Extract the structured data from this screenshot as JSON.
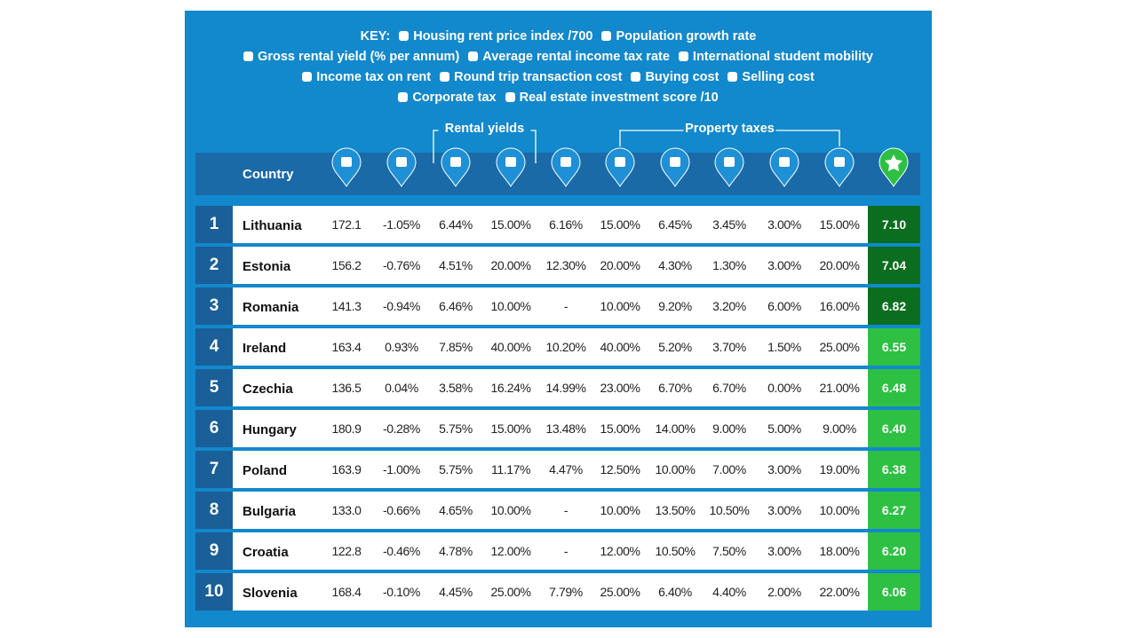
{
  "key": {
    "label": "KEY:",
    "lines": [
      [
        "Housing rent price index /700",
        "Population growth rate"
      ],
      [
        "Gross rental yield (% per annum)",
        "Average rental income tax rate",
        "International student mobility"
      ],
      [
        "Income tax on rent",
        "Round trip transaction cost",
        "Buying cost",
        "Selling cost"
      ],
      [
        "Corporate tax",
        "Real estate investment score /10"
      ]
    ]
  },
  "groups": [
    "Rental yields",
    "Property taxes"
  ],
  "table": {
    "country_header": "Country",
    "rows": [
      {
        "rank": "1",
        "country": "Lithuania",
        "values": [
          "172.1",
          "-1.05%",
          "6.44%",
          "15.00%",
          "6.16%",
          "15.00%",
          "6.45%",
          "3.45%",
          "3.00%",
          "15.00%"
        ],
        "score": "7.10"
      },
      {
        "rank": "2",
        "country": "Estonia",
        "values": [
          "156.2",
          "-0.76%",
          "4.51%",
          "20.00%",
          "12.30%",
          "20.00%",
          "4.30%",
          "1.30%",
          "3.00%",
          "20.00%"
        ],
        "score": "7.04"
      },
      {
        "rank": "3",
        "country": "Romania",
        "values": [
          "141.3",
          "-0.94%",
          "6.46%",
          "10.00%",
          "-",
          "10.00%",
          "9.20%",
          "3.20%",
          "6.00%",
          "16.00%"
        ],
        "score": "6.82"
      },
      {
        "rank": "4",
        "country": "Ireland",
        "values": [
          "163.4",
          "0.93%",
          "7.85%",
          "40.00%",
          "10.20%",
          "40.00%",
          "5.20%",
          "3.70%",
          "1.50%",
          "25.00%"
        ],
        "score": "6.55"
      },
      {
        "rank": "5",
        "country": "Czechia",
        "values": [
          "136.5",
          "0.04%",
          "3.58%",
          "16.24%",
          "14.99%",
          "23.00%",
          "6.70%",
          "6.70%",
          "0.00%",
          "21.00%"
        ],
        "score": "6.48"
      },
      {
        "rank": "6",
        "country": "Hungary",
        "values": [
          "180.9",
          "-0.28%",
          "5.75%",
          "15.00%",
          "13.48%",
          "15.00%",
          "14.00%",
          "9.00%",
          "5.00%",
          "9.00%"
        ],
        "score": "6.40"
      },
      {
        "rank": "7",
        "country": "Poland",
        "values": [
          "163.9",
          "-1.00%",
          "5.75%",
          "11.17%",
          "4.47%",
          "12.50%",
          "10.00%",
          "7.00%",
          "3.00%",
          "19.00%"
        ],
        "score": "6.38"
      },
      {
        "rank": "8",
        "country": "Bulgaria",
        "values": [
          "133.0",
          "-0.66%",
          "4.65%",
          "10.00%",
          "-",
          "10.00%",
          "13.50%",
          "10.50%",
          "3.00%",
          "10.00%"
        ],
        "score": "6.27"
      },
      {
        "rank": "9",
        "country": "Croatia",
        "values": [
          "122.8",
          "-0.46%",
          "4.78%",
          "12.00%",
          "-",
          "12.00%",
          "10.50%",
          "7.50%",
          "3.00%",
          "18.00%"
        ],
        "score": "6.20"
      },
      {
        "rank": "10",
        "country": "Slovenia",
        "values": [
          "168.4",
          "-0.10%",
          "4.45%",
          "25.00%",
          "7.79%",
          "25.00%",
          "6.40%",
          "4.40%",
          "2.00%",
          "22.00%"
        ],
        "score": "6.06"
      }
    ]
  }
}
